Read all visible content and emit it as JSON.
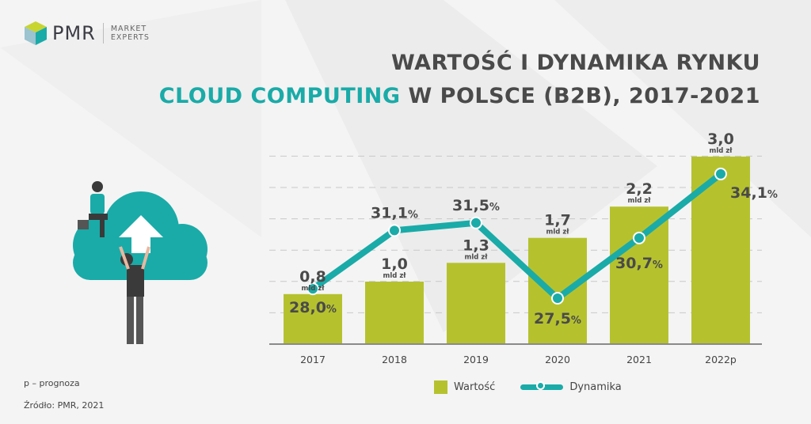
{
  "logo": {
    "brand": "PMR",
    "tagline_1": "MARKET",
    "tagline_2": "EXPERTS"
  },
  "title_line1": "WARTOŚĆ I DYNAMIKA RYNKU",
  "title_line2_highlight": "CLOUD COMPUTING",
  "title_line2_rest": " W POLSCE (B2B), 2017-2021",
  "footnote": "p – prognoza",
  "source": "Źródło: PMR, 2021",
  "colors": {
    "bar": "#b5c22e",
    "line": "#1aaba8",
    "text": "#4a4a4a"
  },
  "chart_data": {
    "type": "bar",
    "title": "WARTOŚĆ I DYNAMIKA RYNKU CLOUD COMPUTING W POLSCE (B2B), 2017-2021",
    "categories": [
      "2017",
      "2018",
      "2019",
      "2020",
      "2021",
      "2022p"
    ],
    "unit_label": "mld zł",
    "series": [
      {
        "name": "Wartość",
        "type": "bar",
        "values": [
          0.8,
          1.0,
          1.3,
          1.7,
          2.2,
          3.0
        ],
        "labels": [
          "0,8",
          "1,0",
          "1,3",
          "1,7",
          "2,2",
          "3,0"
        ]
      },
      {
        "name": "Dynamika",
        "type": "line",
        "values": [
          28.0,
          31.1,
          31.5,
          27.5,
          30.7,
          34.1
        ],
        "labels": [
          "28,0",
          "31,1",
          "31,5",
          "27,5",
          "30,7",
          "34,1"
        ],
        "suffix": "%"
      }
    ],
    "legend": [
      "Wartość",
      "Dynamika"
    ],
    "legend_position": "bottom",
    "grid": true
  }
}
